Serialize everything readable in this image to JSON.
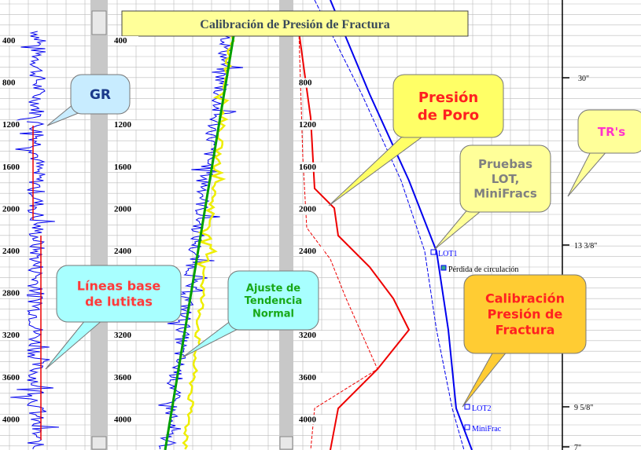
{
  "title": "Calibración de Presión de Fractura",
  "tracks": [
    {
      "depth_labels": [
        "400",
        "800",
        "1200",
        "1600",
        "2000",
        "2400",
        "2800",
        "3200",
        "3600",
        "4000"
      ]
    },
    {
      "depth_labels": [
        "400",
        "1200",
        "1600",
        "2000",
        "2400",
        "3200",
        "3600",
        "4000"
      ]
    },
    {
      "depth_labels": [
        "800",
        "1200",
        "1600",
        "2000",
        "2400",
        "3200",
        "3600",
        "4000"
      ]
    }
  ],
  "callouts": [
    {
      "lines": [
        "GR"
      ]
    },
    {
      "lines": [
        "Líneas base",
        "de lutitas"
      ]
    },
    {
      "lines": [
        "Ajuste de",
        "Tendencia",
        "Normal"
      ]
    },
    {
      "lines": [
        "Presión",
        "de Poro"
      ]
    },
    {
      "lines": [
        "Pruebas",
        "LOT,",
        "MiniFracs"
      ]
    },
    {
      "lines": [
        "TR's"
      ]
    },
    {
      "lines": [
        "Calibración",
        "Presión de",
        "Fractura"
      ]
    }
  ],
  "annotations": [
    "LOT1",
    "Pérdida de circulación",
    "LOT2",
    "MiniFrac"
  ],
  "casing_labels": [
    "30\"",
    "13 3/8\"",
    "9 5/8\"",
    "7\""
  ]
}
